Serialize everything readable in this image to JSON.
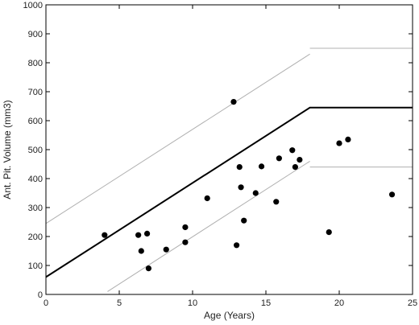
{
  "chart_data": {
    "type": "scatter",
    "xlabel": "Age (Years)",
    "ylabel": "Ant. Pit. Volume (mm3)",
    "xlim": [
      0,
      25
    ],
    "ylim": [
      0,
      1000
    ],
    "xticks": [
      0,
      5,
      10,
      15,
      20,
      25
    ],
    "yticks": [
      0,
      100,
      200,
      300,
      400,
      500,
      600,
      700,
      800,
      900,
      1000
    ],
    "grid": false,
    "colors": {
      "points": "#000000",
      "mean_line": "#000000",
      "bound_lines": "#b0b0b0",
      "axes": "#000000"
    },
    "points": [
      {
        "x": 4.0,
        "y": 205
      },
      {
        "x": 6.3,
        "y": 205
      },
      {
        "x": 6.5,
        "y": 150
      },
      {
        "x": 6.9,
        "y": 210
      },
      {
        "x": 7.0,
        "y": 90
      },
      {
        "x": 8.2,
        "y": 155
      },
      {
        "x": 9.5,
        "y": 232
      },
      {
        "x": 9.5,
        "y": 180
      },
      {
        "x": 11.0,
        "y": 332
      },
      {
        "x": 12.8,
        "y": 665
      },
      {
        "x": 13.0,
        "y": 170
      },
      {
        "x": 13.2,
        "y": 440
      },
      {
        "x": 13.3,
        "y": 370
      },
      {
        "x": 13.5,
        "y": 255
      },
      {
        "x": 14.3,
        "y": 350
      },
      {
        "x": 14.7,
        "y": 442
      },
      {
        "x": 15.7,
        "y": 320
      },
      {
        "x": 15.9,
        "y": 470
      },
      {
        "x": 16.8,
        "y": 498
      },
      {
        "x": 17.0,
        "y": 440
      },
      {
        "x": 17.3,
        "y": 465
      },
      {
        "x": 19.3,
        "y": 215
      },
      {
        "x": 20.0,
        "y": 522
      },
      {
        "x": 20.6,
        "y": 535
      },
      {
        "x": 23.6,
        "y": 345
      }
    ],
    "lines": [
      {
        "role": "mean",
        "x": [
          0,
          18,
          25
        ],
        "y": [
          60,
          645,
          645
        ]
      },
      {
        "role": "upper-bound",
        "x": [
          0,
          18
        ],
        "y": [
          245,
          830
        ]
      },
      {
        "role": "upper-bound",
        "x": [
          18,
          25
        ],
        "y": [
          850,
          850
        ]
      },
      {
        "role": "lower-bound",
        "x": [
          4.2,
          18
        ],
        "y": [
          10,
          460
        ]
      },
      {
        "role": "lower-bound",
        "x": [
          18,
          25
        ],
        "y": [
          440,
          440
        ]
      }
    ]
  }
}
